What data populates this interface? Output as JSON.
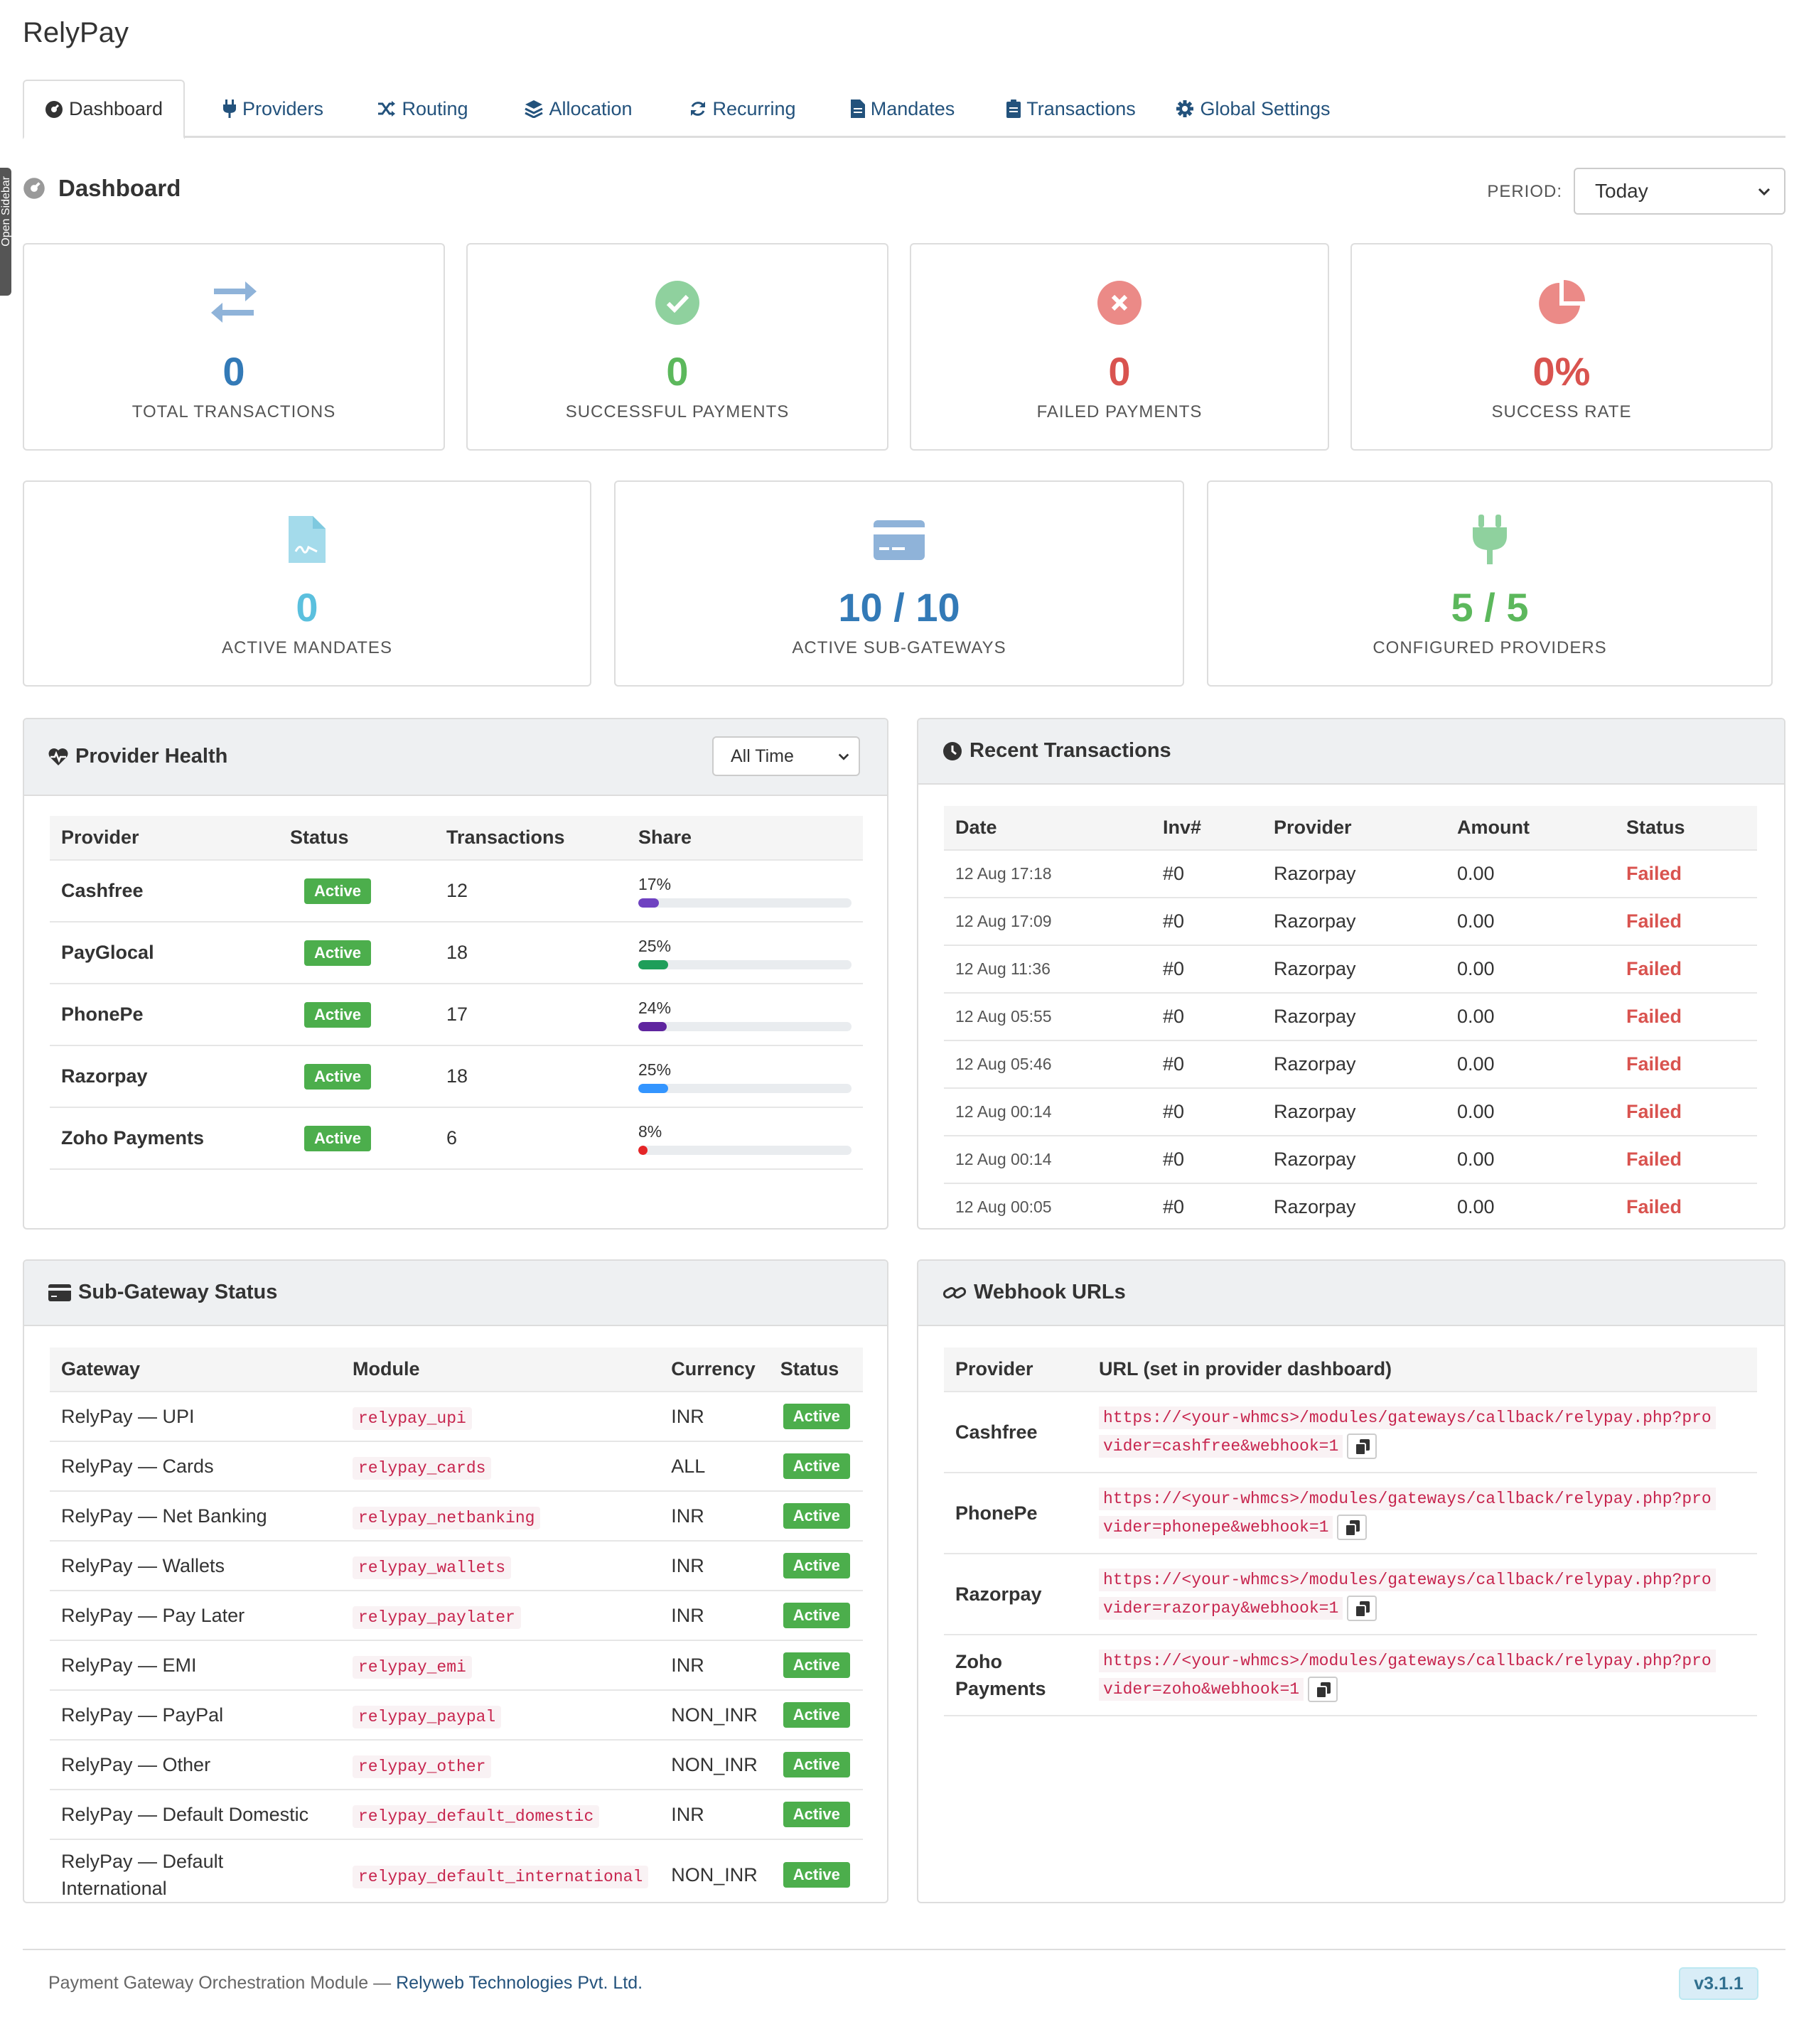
{
  "app": {
    "title": "RelyPay",
    "sidebar_toggle": "Open Sidebar"
  },
  "tabs": [
    {
      "label": "Dashboard",
      "icon": "dashboard-icon",
      "active": true
    },
    {
      "label": "Providers",
      "icon": "plug-icon"
    },
    {
      "label": "Routing",
      "icon": "random-icon"
    },
    {
      "label": "Allocation",
      "icon": "layers-icon"
    },
    {
      "label": "Recurring",
      "icon": "refresh-icon"
    },
    {
      "label": "Mandates",
      "icon": "file-icon"
    },
    {
      "label": "Transactions",
      "icon": "clipboard-icon"
    },
    {
      "label": "Global Settings",
      "icon": "gear-icon"
    }
  ],
  "page": {
    "title": "Dashboard",
    "period_label": "PERIOD:",
    "period_value": "Today"
  },
  "stats_row1": [
    {
      "value": "0",
      "label": "TOTAL TRANSACTIONS",
      "icon": "exchange-icon",
      "color": "#337ab7"
    },
    {
      "value": "0",
      "label": "SUCCESSFUL PAYMENTS",
      "icon": "check-circle-icon",
      "color": "#5cb85c"
    },
    {
      "value": "0",
      "label": "FAILED PAYMENTS",
      "icon": "times-circle-icon",
      "color": "#d9534f"
    },
    {
      "value": "0%",
      "label": "SUCCESS RATE",
      "icon": "pie-chart-icon",
      "color": "#d9534f"
    }
  ],
  "stats_row2": [
    {
      "value": "0",
      "label": "ACTIVE MANDATES",
      "icon": "file-signature-icon",
      "color": "#5bc0de"
    },
    {
      "value": "10 / 10",
      "label": "ACTIVE SUB-GATEWAYS",
      "icon": "credit-card-icon",
      "color": "#337ab7"
    },
    {
      "value": "5 / 5",
      "label": "CONFIGURED PROVIDERS",
      "icon": "plug-icon",
      "color": "#5cb85c"
    }
  ],
  "provider_health": {
    "title": "Provider Health",
    "filter": "All Time",
    "columns": [
      "Provider",
      "Status",
      "Transactions",
      "Share"
    ],
    "rows": [
      {
        "provider": "Cashfree",
        "status": "Active",
        "transactions": "12",
        "share": "17%",
        "share_value": 17,
        "color": "#6f42c1"
      },
      {
        "provider": "PayGlocal",
        "status": "Active",
        "transactions": "18",
        "share": "25%",
        "share_value": 25,
        "color": "#1e9e5a"
      },
      {
        "provider": "PhonePe",
        "status": "Active",
        "transactions": "17",
        "share": "24%",
        "share_value": 24,
        "color": "#5f259f"
      },
      {
        "provider": "Razorpay",
        "status": "Active",
        "transactions": "18",
        "share": "25%",
        "share_value": 25,
        "color": "#3395ff"
      },
      {
        "provider": "Zoho Payments",
        "status": "Active",
        "transactions": "6",
        "share": "8%",
        "share_value": 8,
        "color": "#e42527"
      }
    ]
  },
  "recent_transactions": {
    "title": "Recent Transactions",
    "columns": [
      "Date",
      "Inv#",
      "Provider",
      "Amount",
      "Status"
    ],
    "rows": [
      {
        "date": "12 Aug 17:18",
        "inv": "#0",
        "provider": "Razorpay",
        "amount": "0.00",
        "status": "Failed"
      },
      {
        "date": "12 Aug 17:09",
        "inv": "#0",
        "provider": "Razorpay",
        "amount": "0.00",
        "status": "Failed"
      },
      {
        "date": "12 Aug 11:36",
        "inv": "#0",
        "provider": "Razorpay",
        "amount": "0.00",
        "status": "Failed"
      },
      {
        "date": "12 Aug 05:55",
        "inv": "#0",
        "provider": "Razorpay",
        "amount": "0.00",
        "status": "Failed"
      },
      {
        "date": "12 Aug 05:46",
        "inv": "#0",
        "provider": "Razorpay",
        "amount": "0.00",
        "status": "Failed"
      },
      {
        "date": "12 Aug 00:14",
        "inv": "#0",
        "provider": "Razorpay",
        "amount": "0.00",
        "status": "Failed"
      },
      {
        "date": "12 Aug 00:14",
        "inv": "#0",
        "provider": "Razorpay",
        "amount": "0.00",
        "status": "Failed"
      },
      {
        "date": "12 Aug 00:05",
        "inv": "#0",
        "provider": "Razorpay",
        "amount": "0.00",
        "status": "Failed"
      }
    ]
  },
  "sub_gateways": {
    "title": "Sub-Gateway Status",
    "columns": [
      "Gateway",
      "Module",
      "Currency",
      "Status"
    ],
    "rows": [
      {
        "gateway": "RelyPay — UPI",
        "module": "relypay_upi",
        "currency": "INR",
        "status": "Active"
      },
      {
        "gateway": "RelyPay — Cards",
        "module": "relypay_cards",
        "currency": "ALL",
        "status": "Active"
      },
      {
        "gateway": "RelyPay — Net Banking",
        "module": "relypay_netbanking",
        "currency": "INR",
        "status": "Active"
      },
      {
        "gateway": "RelyPay — Wallets",
        "module": "relypay_wallets",
        "currency": "INR",
        "status": "Active"
      },
      {
        "gateway": "RelyPay — Pay Later",
        "module": "relypay_paylater",
        "currency": "INR",
        "status": "Active"
      },
      {
        "gateway": "RelyPay — EMI",
        "module": "relypay_emi",
        "currency": "INR",
        "status": "Active"
      },
      {
        "gateway": "RelyPay — PayPal",
        "module": "relypay_paypal",
        "currency": "NON_INR",
        "status": "Active"
      },
      {
        "gateway": "RelyPay — Other",
        "module": "relypay_other",
        "currency": "NON_INR",
        "status": "Active"
      },
      {
        "gateway": "RelyPay — Default Domestic",
        "module": "relypay_default_domestic",
        "currency": "INR",
        "status": "Active"
      },
      {
        "gateway": "RelyPay — Default International",
        "module": "relypay_default_international",
        "currency": "NON_INR",
        "status": "Active"
      }
    ]
  },
  "webhooks": {
    "title": "Webhook URLs",
    "columns": [
      "Provider",
      "URL (set in provider dashboard)"
    ],
    "rows": [
      {
        "provider": "Cashfree",
        "url_line1": "https://<your-whmcs>/modules/gateways/callback/relypay.php?pro",
        "url_line2": "vider=cashfree&webhook=1"
      },
      {
        "provider": "PhonePe",
        "url_line1": "https://<your-whmcs>/modules/gateways/callback/relypay.php?pro",
        "url_line2": "vider=phonepe&webhook=1"
      },
      {
        "provider": "Razorpay",
        "url_line1": "https://<your-whmcs>/modules/gateways/callback/relypay.php?pro",
        "url_line2": "vider=razorpay&webhook=1"
      },
      {
        "provider": "Zoho Payments",
        "url_line1": "https://<your-whmcs>/modules/gateways/callback/relypay.php?pro",
        "url_line2": "vider=zoho&webhook=1"
      }
    ]
  },
  "footer": {
    "text": "Payment Gateway Orchestration Module — ",
    "company": "Relyweb Technologies Pvt. Ltd.",
    "version": "v3.1.1"
  }
}
